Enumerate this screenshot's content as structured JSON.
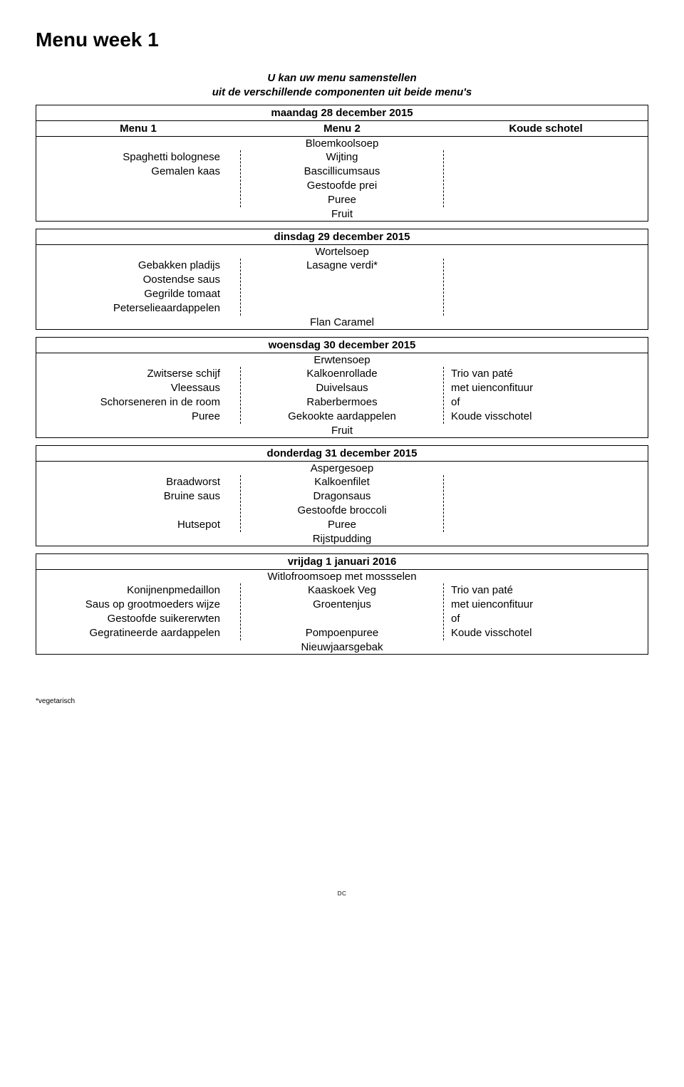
{
  "title": "Menu week 1",
  "subtitle_line1": "U kan uw menu samenstellen",
  "subtitle_line2": "uit de verschillende componenten uit beide menu's",
  "header_row": {
    "menu1": "Menu 1",
    "menu2": "Menu 2",
    "cold": "Koude schotel"
  },
  "days": [
    {
      "date": "maandag 28 december 2015",
      "soup": "Bloemkoolsoep",
      "left": [
        "Spaghetti bolognese",
        "Gemalen kaas",
        "",
        ""
      ],
      "mid": [
        "Wijting",
        "Bascillicumsaus",
        "Gestoofde prei",
        "Puree"
      ],
      "right": [
        "",
        "",
        "",
        ""
      ],
      "dessert": "Fruit"
    },
    {
      "date": "dinsdag 29 december 2015",
      "soup": "Wortelsoep",
      "left": [
        "Gebakken pladijs",
        "Oostendse saus",
        "Gegrilde tomaat",
        "Peterselieaardappelen"
      ],
      "mid": [
        "Lasagne verdi*",
        "",
        "",
        ""
      ],
      "right": [
        "",
        "",
        "",
        ""
      ],
      "dessert": "Flan Caramel"
    },
    {
      "date": "woensdag 30 december 2015",
      "soup": "Erwtensoep",
      "left": [
        "Zwitserse schijf",
        "Vleessaus",
        "Schorseneren in de room",
        "Puree"
      ],
      "mid": [
        "Kalkoenrollade",
        "Duivelsaus",
        "Raberbermoes",
        "Gekookte aardappelen"
      ],
      "right": [
        "Trio van paté",
        "met uienconfituur",
        "of",
        "Koude visschotel"
      ],
      "dessert": "Fruit"
    },
    {
      "date": "donderdag 31 december 2015",
      "soup": "Aspergesoep",
      "left": [
        "Braadworst",
        "Bruine saus",
        "",
        "Hutsepot"
      ],
      "mid": [
        "Kalkoenfilet",
        "Dragonsaus",
        "Gestoofde broccoli",
        "Puree"
      ],
      "right": [
        "",
        "",
        "",
        ""
      ],
      "dessert": "Rijstpudding"
    },
    {
      "date": "vrijdag 1 januari 2016",
      "soup": "Witlofroomsoep met mossselen",
      "left": [
        "Konijnenpmedaillon",
        "Saus op grootmoeders wijze",
        "Gestoofde suikererwten",
        "Gegratineerde aardappelen"
      ],
      "mid": [
        "Kaaskoek Veg",
        "Groentenjus",
        "",
        "Pompoenpuree"
      ],
      "right": [
        "Trio van paté",
        "met uienconfituur",
        "of",
        "Koude visschotel"
      ],
      "dessert": "Nieuwjaarsgebak"
    }
  ],
  "footnote": "*vegetarisch",
  "footer": "DC"
}
